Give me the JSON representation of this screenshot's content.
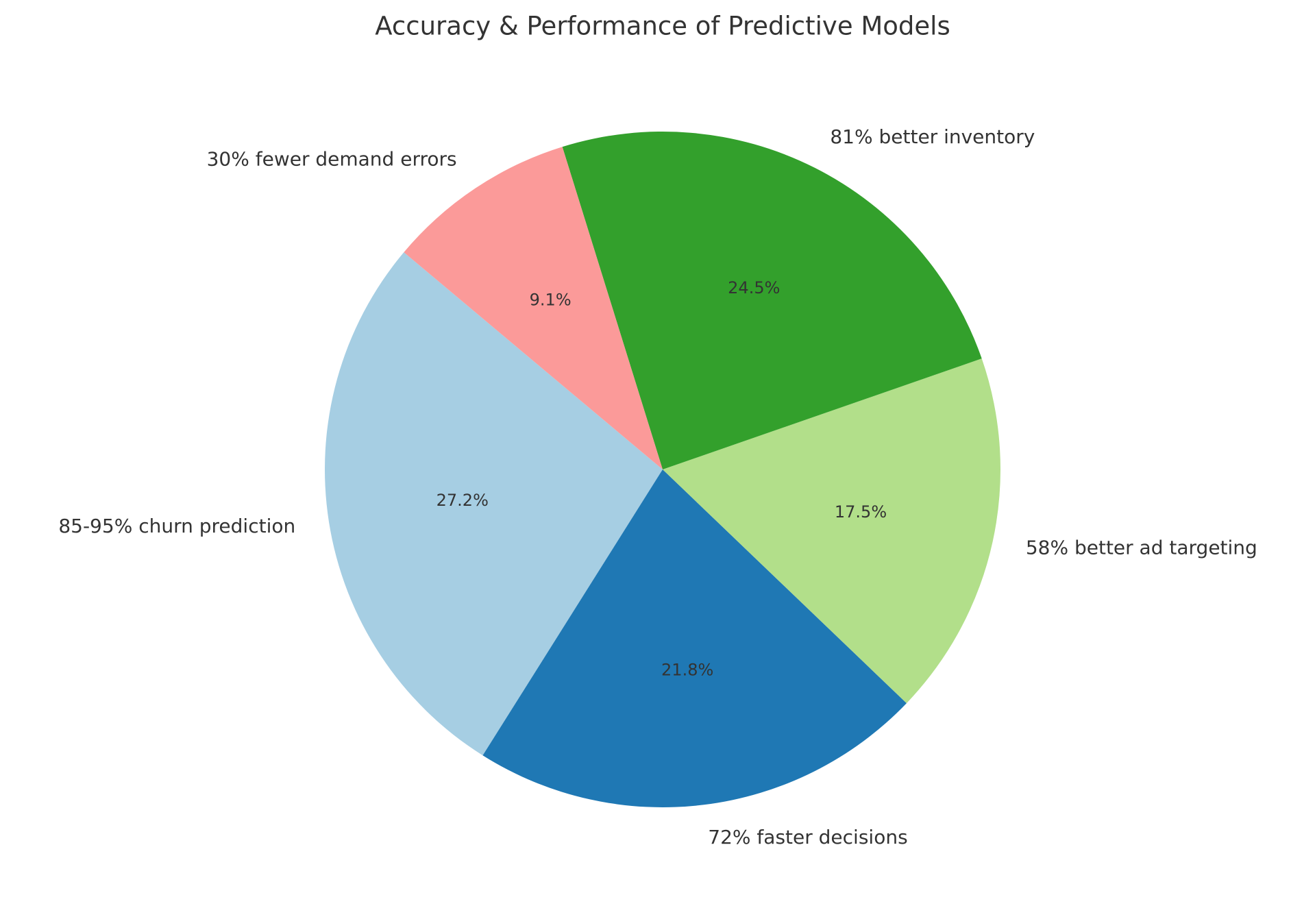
{
  "chart_data": {
    "type": "pie",
    "title": "Accuracy & Performance of Predictive Models",
    "categories": [
      "85-95% churn prediction",
      "72% faster decisions",
      "58% better ad targeting",
      "81% better inventory",
      "30% fewer demand errors"
    ],
    "values": [
      27.2,
      21.8,
      17.5,
      24.5,
      9.1
    ],
    "value_labels": [
      "27.2%",
      "21.8%",
      "17.5%",
      "24.5%",
      "9.1%"
    ],
    "colors": [
      "#a6cee3",
      "#1f78b4",
      "#b2df8a",
      "#33a02c",
      "#fb9a99"
    ]
  }
}
